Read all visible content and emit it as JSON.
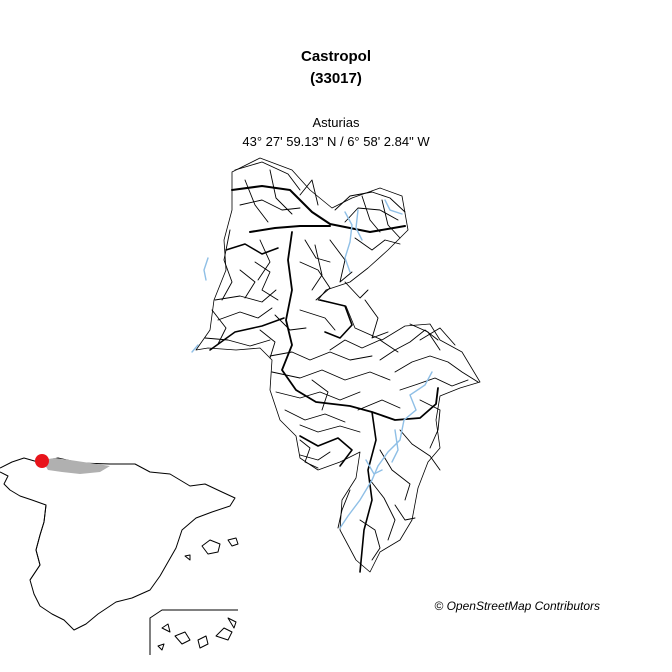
{
  "map": {
    "title": "Castropol",
    "code": "(33017)",
    "region": "Asturias",
    "coordinates": "43° 27' 59.13\" N / 6° 58' 2.84\" W",
    "credit": "© OpenStreetMap Contributors",
    "colors": {
      "road": "#000000",
      "river": "#8fbfe6",
      "marker": "#e8141b",
      "region_fill": "#b0b0b0"
    }
  }
}
